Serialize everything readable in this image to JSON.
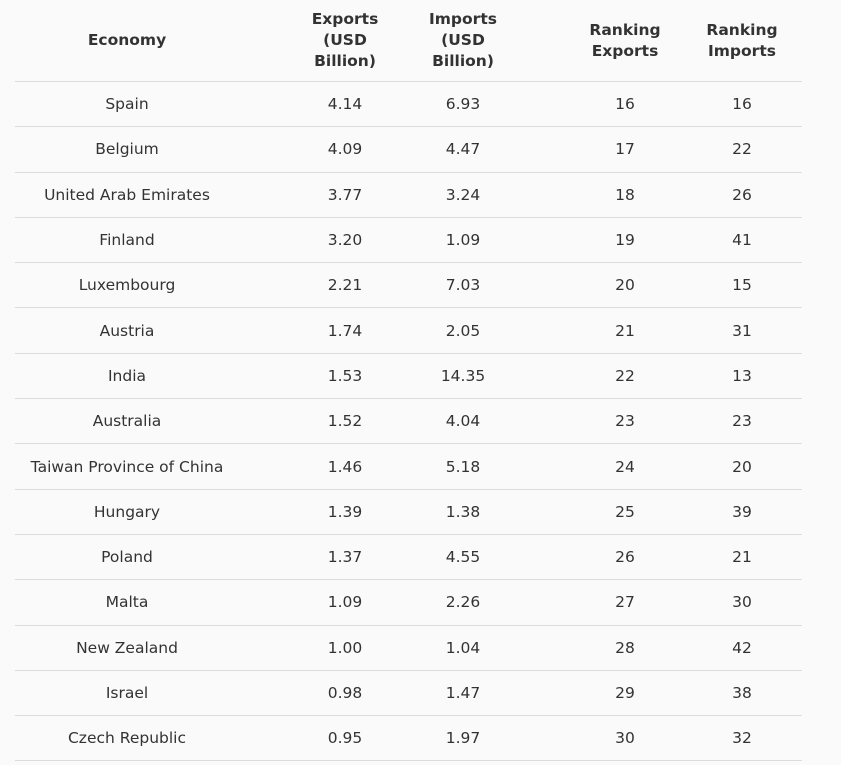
{
  "table": {
    "header": [
      "Economy",
      "Exports (USD Billion)",
      "Imports (USD Billion)",
      "Ranking Exports",
      "Ranking Imports"
    ],
    "rows": [
      [
        "Spain",
        "4.14",
        "6.93",
        "16",
        "16"
      ],
      [
        "Belgium",
        "4.09",
        "4.47",
        "17",
        "22"
      ],
      [
        "United Arab Emirates",
        "3.77",
        "3.24",
        "18",
        "26"
      ],
      [
        "Finland",
        "3.20",
        "1.09",
        "19",
        "41"
      ],
      [
        "Luxembourg",
        "2.21",
        "7.03",
        "20",
        "15"
      ],
      [
        "Austria",
        "1.74",
        "2.05",
        "21",
        "31"
      ],
      [
        "India",
        "1.53",
        "14.35",
        "22",
        "13"
      ],
      [
        "Australia",
        "1.52",
        "4.04",
        "23",
        "23"
      ],
      [
        "Taiwan Province of China",
        "1.46",
        "5.18",
        "24",
        "20"
      ],
      [
        "Hungary",
        "1.39",
        "1.38",
        "25",
        "39"
      ],
      [
        "Poland",
        "1.37",
        "4.55",
        "26",
        "21"
      ],
      [
        "Malta",
        "1.09",
        "2.26",
        "27",
        "30"
      ],
      [
        "New Zealand",
        "1.00",
        "1.04",
        "28",
        "42"
      ],
      [
        "Israel",
        "0.98",
        "1.47",
        "29",
        "38"
      ],
      [
        "Czech Republic",
        "0.95",
        "1.97",
        "30",
        "32"
      ]
    ]
  }
}
